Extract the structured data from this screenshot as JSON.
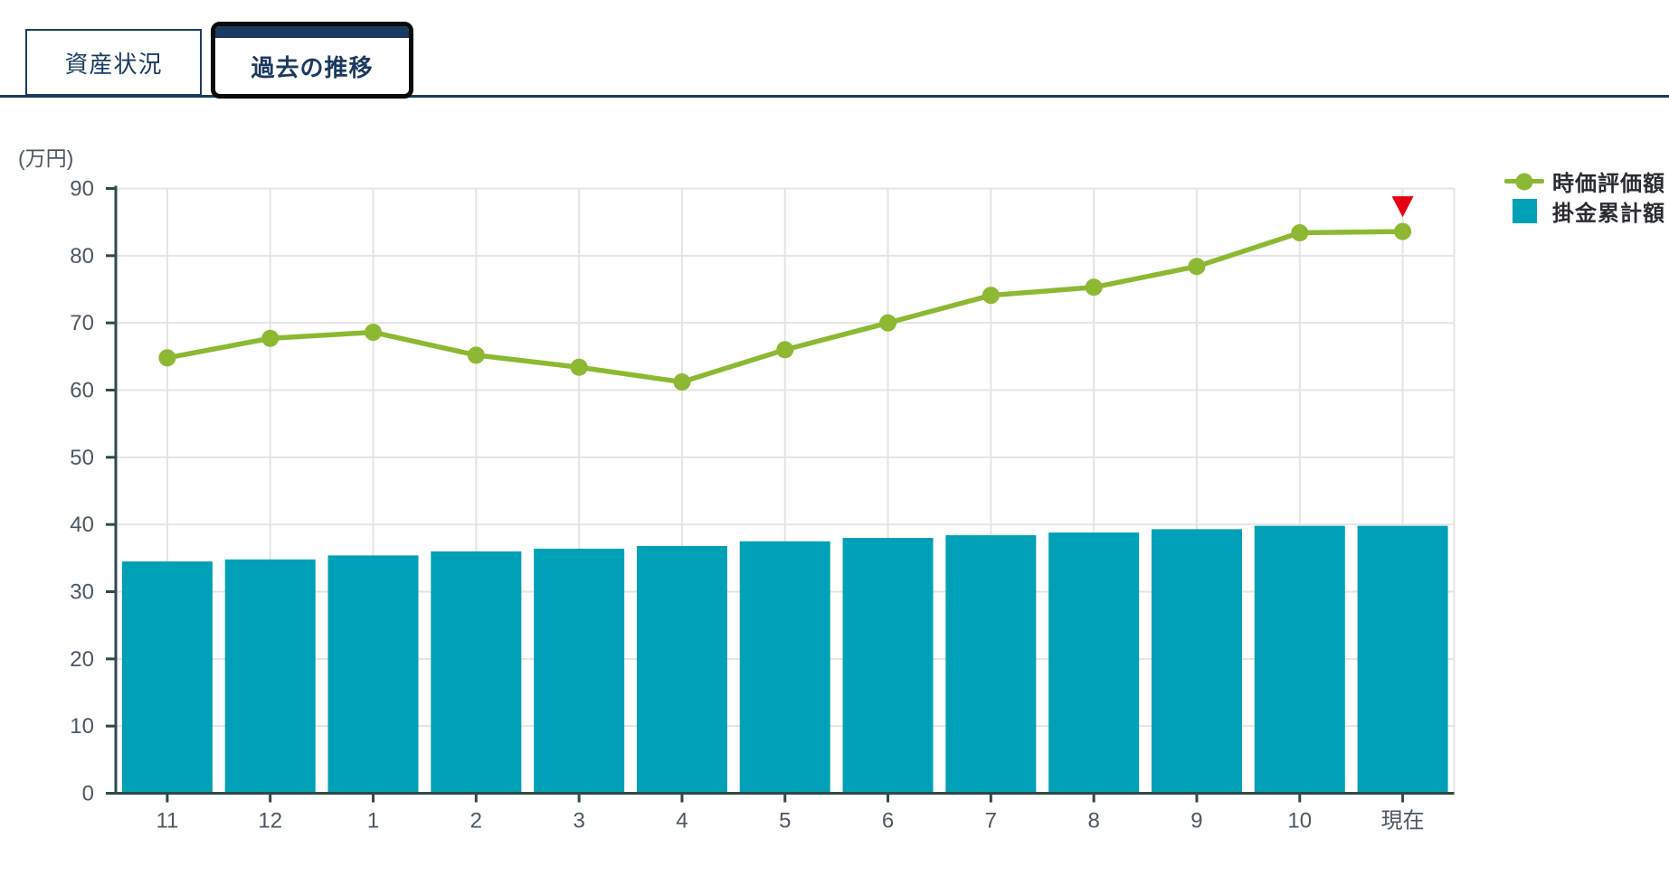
{
  "tabs": [
    {
      "label": "資産状況",
      "active": false
    },
    {
      "label": "過去の推移",
      "active": true
    }
  ],
  "chart_data": {
    "type": "bar",
    "subtype": "bar-and-line-combo",
    "unit_label": "(万円)",
    "categories": [
      "11",
      "12",
      "1",
      "2",
      "3",
      "4",
      "5",
      "6",
      "7",
      "8",
      "9",
      "10",
      "現在"
    ],
    "series": [
      {
        "name": "時価評価額",
        "type": "line",
        "color": "#8cb832",
        "values": [
          64.8,
          67.7,
          68.6,
          65.2,
          63.4,
          61.2,
          66.0,
          70.0,
          74.1,
          75.3,
          78.4,
          83.4,
          83.6
        ]
      },
      {
        "name": "掛金累計額",
        "type": "bar",
        "color": "#00a1b7",
        "values": [
          34.5,
          34.8,
          35.4,
          36.0,
          36.4,
          36.8,
          37.5,
          38.0,
          38.4,
          38.8,
          39.3,
          39.8,
          39.8
        ]
      }
    ],
    "ylim": [
      0,
      90
    ],
    "ytick_step": 10,
    "grid": true,
    "legend_position": "top-right",
    "annotation": {
      "type": "down-triangle-marker",
      "category": "現在",
      "series": "時価評価額",
      "color": "#e60012"
    }
  },
  "colors": {
    "tab_navy": "#1b3a5f",
    "active_tab_border": "#0b0b0b",
    "axis": "#2e4a49",
    "gridline": "#e4e4e4",
    "tick_label": "#4d5763",
    "legend_text": "#2a2c31",
    "line_green": "#8cb832",
    "bar_teal": "#00a1b7",
    "marker_red": "#e60012"
  }
}
